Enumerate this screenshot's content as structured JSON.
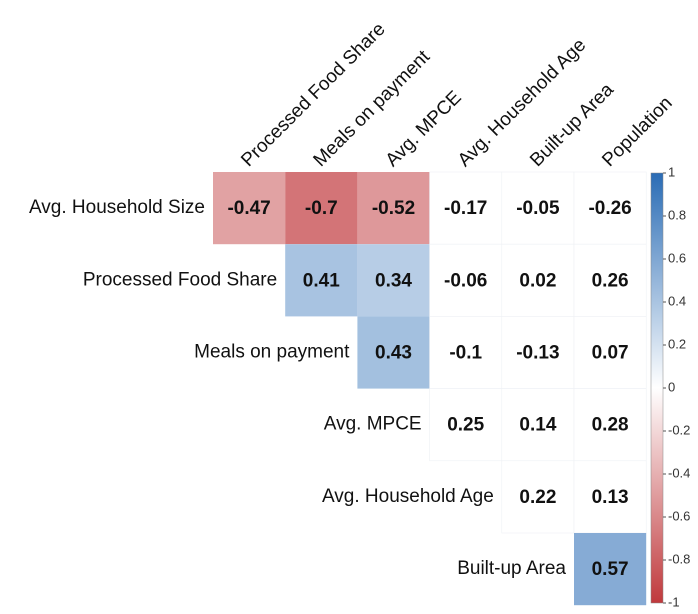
{
  "chart_data": {
    "type": "heatmap",
    "columns": [
      "Processed Food Share",
      "Meals on payment",
      "Avg. MPCE",
      "Avg. Household Age",
      "Built-up Area",
      "Population"
    ],
    "rows": [
      "Avg. Household Size",
      "Processed Food Share",
      "Meals on payment",
      "Avg. MPCE",
      "Avg. Household Age",
      "Built-up Area"
    ],
    "values": [
      [
        -0.47,
        -0.7,
        -0.52,
        -0.17,
        -0.05,
        -0.26
      ],
      [
        null,
        0.41,
        0.34,
        -0.06,
        0.02,
        0.26
      ],
      [
        null,
        null,
        0.43,
        -0.1,
        -0.13,
        0.07
      ],
      [
        null,
        null,
        null,
        0.25,
        0.14,
        0.28
      ],
      [
        null,
        null,
        null,
        null,
        0.22,
        0.13
      ],
      [
        null,
        null,
        null,
        null,
        null,
        0.57
      ]
    ],
    "shaded": [
      [
        true,
        true,
        true,
        false,
        false,
        false
      ],
      [
        false,
        true,
        true,
        false,
        false,
        false
      ],
      [
        false,
        false,
        true,
        false,
        false,
        false
      ],
      [
        false,
        false,
        false,
        false,
        false,
        false
      ],
      [
        false,
        false,
        false,
        false,
        false,
        false
      ],
      [
        false,
        false,
        false,
        false,
        false,
        true
      ]
    ],
    "colormap": {
      "low": "#c0393c",
      "mid": "#ffffff",
      "high": "#2a6cb5"
    },
    "clim": [
      -1,
      1
    ],
    "cticks": [
      1,
      0.8,
      0.6,
      0.4,
      0.2,
      0,
      -0.2,
      -0.4,
      -0.6,
      -0.8,
      -1
    ]
  }
}
